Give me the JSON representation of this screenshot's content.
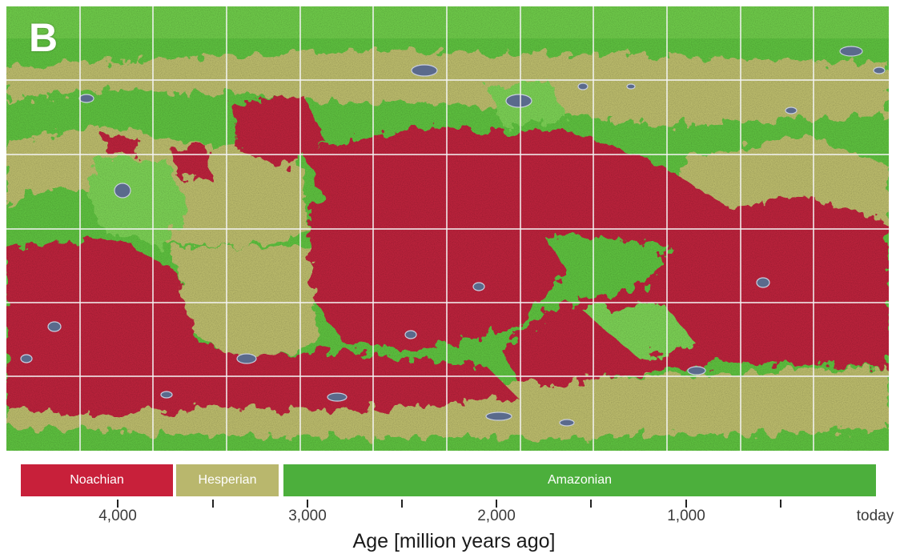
{
  "panel_label": "B",
  "map": {
    "colors": {
      "noachian": "#b8213a",
      "hesperian": "#b8b86a",
      "amazonian": "#5cbd3e",
      "amazonian_light": "#7fcf55",
      "crater": "#5a6a8c",
      "grid": "#f4f4f4"
    },
    "grid_meridians": 12,
    "grid_parallels": 6
  },
  "legend": {
    "periods": [
      {
        "name": "Noachian",
        "color": "#c8203a"
      },
      {
        "name": "Hesperian",
        "color": "#b9b76d"
      },
      {
        "name": "Amazonian",
        "color": "#4caf3c"
      }
    ]
  },
  "age_axis": {
    "tick_labels": [
      "4,000",
      "3,000",
      "2,000",
      "1,000",
      "today"
    ],
    "title": "Age [million years ago]"
  }
}
